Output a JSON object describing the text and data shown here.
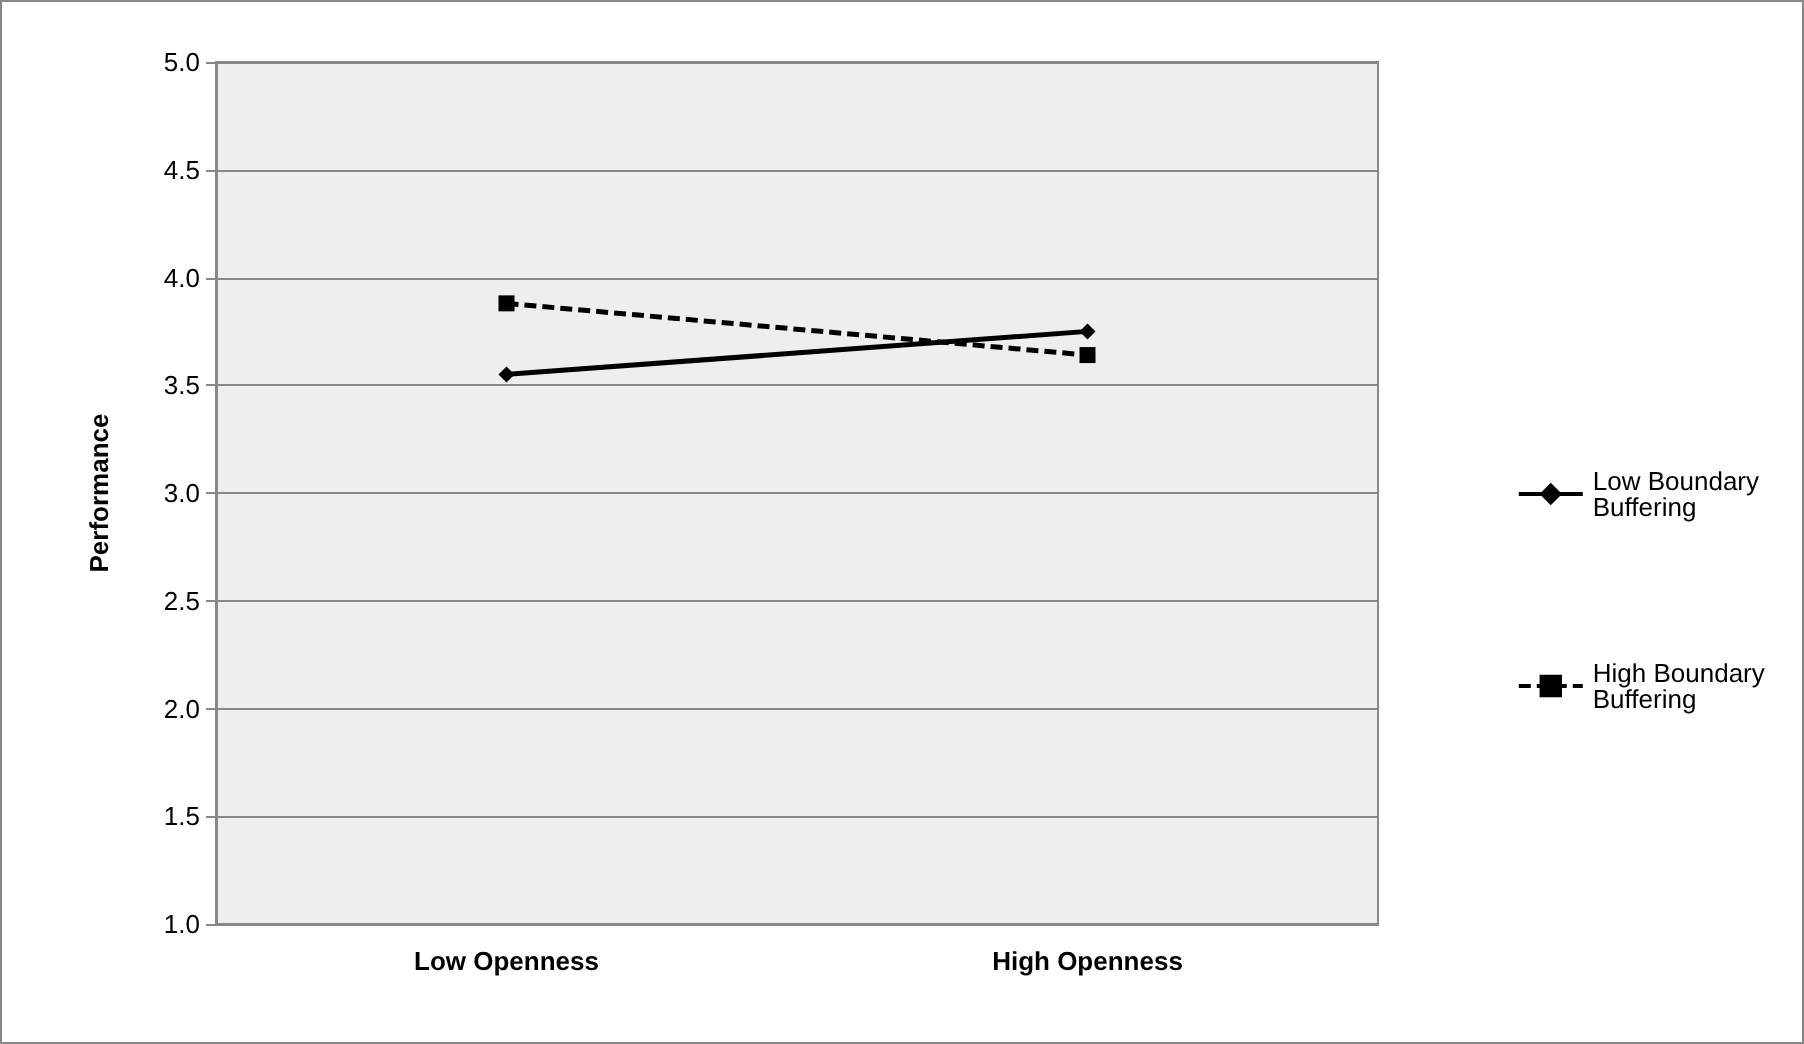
{
  "chart_data": {
    "type": "line",
    "ylabel": "Performance",
    "categories": [
      "Low Openness",
      "High Openness"
    ],
    "series": [
      {
        "name": "Low Boundary Buffering",
        "color": "#000000",
        "values": [
          3.55,
          3.75
        ],
        "marker": "diamond",
        "line_style": "solid"
      },
      {
        "name": "High Boundary Buffering",
        "color": "#000000",
        "values": [
          3.88,
          3.64
        ],
        "marker": "square",
        "line_style": "dashed"
      }
    ],
    "ylim": [
      1.0,
      5.0
    ],
    "yticks": [
      {
        "value": 1,
        "label": "1.0"
      },
      {
        "value": 1.5,
        "label": "1.5"
      },
      {
        "value": 2,
        "label": "2.0"
      },
      {
        "value": 2.5,
        "label": "2.5"
      },
      {
        "value": 3,
        "label": "3.0"
      },
      {
        "value": 3.5,
        "label": "3.5"
      },
      {
        "value": 4,
        "label": "4.0"
      },
      {
        "value": 4.5,
        "label": "4.5"
      },
      {
        "value": 5,
        "label": "5.0"
      }
    ],
    "grid": "y",
    "legend": "right"
  }
}
